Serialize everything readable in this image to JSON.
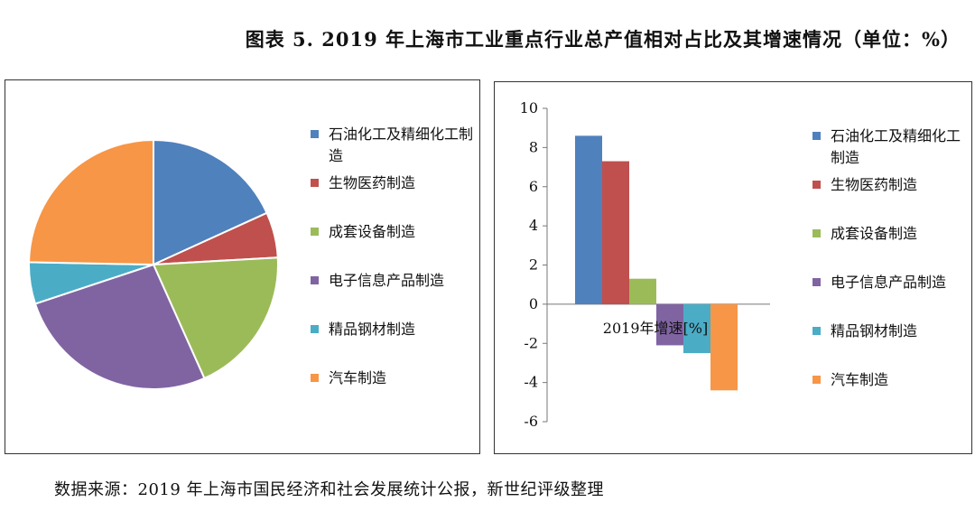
{
  "title": "图表 5. 2019 年上海市工业重点行业总产值相对占比及其增速情况（单位：%）",
  "source": "数据来源：2019 年上海市国民经济和社会发展统计公报，新世纪评级整理",
  "chart_data": [
    {
      "type": "pie",
      "categories": [
        "石油化工及精细化工制造",
        "生物医药制造",
        "成套设备制造",
        "电子信息产品制造",
        "精品钢材制造",
        "汽车制造"
      ],
      "values": [
        18.2,
        5.9,
        19.2,
        26.6,
        5.4,
        24.7
      ],
      "colors": [
        "#4F81BD",
        "#C0504D",
        "#9BBB59",
        "#8064A2",
        "#4BACC6",
        "#F79646"
      ],
      "legend": "right"
    },
    {
      "type": "bar",
      "x_label": "2019年增速[%]",
      "categories": [
        "石油化工及精细化工制造",
        "生物医药制造",
        "成套设备制造",
        "电子信息产品制造",
        "精品钢材制造",
        "汽车制造"
      ],
      "values": [
        8.6,
        7.3,
        1.3,
        -2.1,
        -2.5,
        -4.4
      ],
      "colors": [
        "#4F81BD",
        "#C0504D",
        "#9BBB59",
        "#8064A2",
        "#4BACC6",
        "#F79646"
      ],
      "ylim": [
        -6,
        10
      ],
      "yticks": [
        10,
        8,
        6,
        4,
        2,
        0,
        -2,
        -4,
        -6
      ],
      "legend": "right",
      "grid": false
    }
  ]
}
